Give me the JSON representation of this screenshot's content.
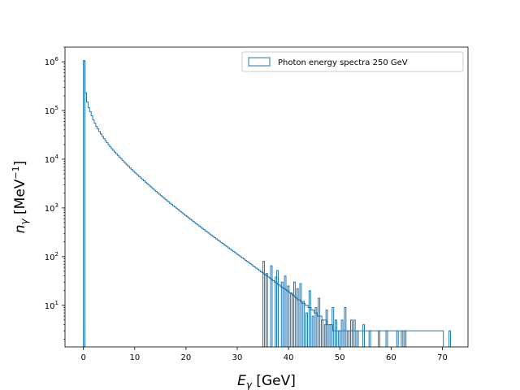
{
  "chart_data": {
    "type": "histogram",
    "title": "",
    "xlabel": "E_γ [GeV]",
    "xlabel_parts": {
      "symbol": "E",
      "sub": "γ",
      "unit": " [GeV]"
    },
    "ylabel": "n_γ [MeV^−1]",
    "ylabel_parts": {
      "symbol": "n",
      "sub": "γ",
      "open": " [MeV",
      "sup": "−1",
      "close": "]"
    },
    "xlim": [
      -3.6,
      75
    ],
    "ylim": [
      1.4,
      2000000
    ],
    "yscale": "log",
    "xticks": [
      0,
      10,
      20,
      30,
      40,
      50,
      60,
      70
    ],
    "xtick_labels": [
      "0",
      "10",
      "20",
      "30",
      "40",
      "50",
      "60",
      "70"
    ],
    "yticks": [
      10,
      100,
      1000,
      10000,
      100000,
      1000000
    ],
    "ytick_labels": [
      {
        "base": "10",
        "exp": "1"
      },
      {
        "base": "10",
        "exp": "2"
      },
      {
        "base": "10",
        "exp": "3"
      },
      {
        "base": "10",
        "exp": "4"
      },
      {
        "base": "10",
        "exp": "5"
      },
      {
        "base": "10",
        "exp": "6"
      }
    ],
    "grid": false,
    "legend_position": "top-right",
    "series": [
      {
        "name": "Photon energy spectra 250 GeV",
        "color": "#1f77b4",
        "bin_width": 0.3,
        "bin_start": 0,
        "counts": [
          1050000,
          230000,
          150000,
          115000,
          95000,
          78000,
          64000,
          55000,
          47000,
          42000,
          37000,
          33000,
          29500,
          26500,
          24000,
          21800,
          19800,
          18000,
          16500,
          15200,
          14000,
          13000,
          12000,
          11100,
          10300,
          9500,
          8800,
          8200,
          7600,
          7100,
          6600,
          6150,
          5750,
          5350,
          5000,
          4700,
          4400,
          4120,
          3850,
          3600,
          3380,
          3170,
          2970,
          2780,
          2610,
          2450,
          2300,
          2160,
          2030,
          1910,
          1790,
          1690,
          1590,
          1500,
          1410,
          1330,
          1250,
          1180,
          1110,
          1050,
          990,
          935,
          880,
          830,
          785,
          740,
          700,
          660,
          625,
          590,
          560,
          530,
          500,
          472,
          447,
          423,
          400,
          378,
          358,
          339,
          321,
          304,
          288,
          273,
          259,
          245,
          232,
          220,
          208,
          197,
          187,
          177,
          168,
          159,
          151,
          143,
          136,
          129,
          122,
          116,
          110,
          104,
          99,
          94,
          89,
          84,
          80,
          76,
          72,
          68,
          64,
          61,
          58,
          55,
          52,
          49,
          47,
          44,
          42,
          40,
          38,
          36,
          34,
          32,
          30,
          29,
          27,
          26,
          24,
          23,
          22,
          21,
          20,
          19,
          18,
          17,
          16,
          15,
          14,
          13,
          13,
          12,
          11,
          11,
          10,
          10,
          9,
          9,
          8,
          8,
          7,
          7,
          6,
          6,
          6,
          5,
          5,
          5,
          4,
          4,
          4,
          4,
          3,
          3,
          3,
          3,
          3,
          3,
          3,
          3,
          3,
          3,
          3,
          3,
          3,
          3,
          3,
          3,
          3,
          3,
          3,
          3,
          3,
          3,
          3,
          3,
          3,
          3,
          3,
          3,
          3,
          3,
          3,
          3,
          3,
          3,
          3,
          3,
          3,
          3,
          3,
          3,
          3,
          3,
          3,
          3,
          3,
          3,
          3,
          3,
          3,
          3,
          3,
          3,
          3,
          3,
          3,
          3,
          3,
          3,
          3,
          3,
          3,
          3,
          3,
          3,
          3,
          3,
          3,
          3,
          3,
          3,
          3,
          3
        ]
      }
    ],
    "tail_bins": [
      {
        "x0": 0.0,
        "x1": 0.3,
        "count": 1050000
      },
      {
        "x0": 35.0,
        "x1": 35.3,
        "count": 80
      },
      {
        "x0": 35.6,
        "x1": 35.9,
        "count": 45
      },
      {
        "x0": 36.5,
        "x1": 36.8,
        "count": 65
      },
      {
        "x0": 37.4,
        "x1": 37.7,
        "count": 38
      },
      {
        "x0": 37.7,
        "x1": 38.0,
        "count": 52
      },
      {
        "x0": 38.6,
        "x1": 38.9,
        "count": 30
      },
      {
        "x0": 39.2,
        "x1": 39.5,
        "count": 40
      },
      {
        "x0": 39.8,
        "x1": 40.1,
        "count": 25
      },
      {
        "x0": 40.4,
        "x1": 40.7,
        "count": 18
      },
      {
        "x0": 41.0,
        "x1": 41.3,
        "count": 30
      },
      {
        "x0": 41.6,
        "x1": 41.9,
        "count": 22
      },
      {
        "x0": 42.2,
        "x1": 42.5,
        "count": 28
      },
      {
        "x0": 42.8,
        "x1": 43.1,
        "count": 12
      },
      {
        "x0": 43.4,
        "x1": 43.7,
        "count": 7
      },
      {
        "x0": 44.0,
        "x1": 44.3,
        "count": 20
      },
      {
        "x0": 44.6,
        "x1": 44.9,
        "count": 6
      },
      {
        "x0": 45.2,
        "x1": 45.5,
        "count": 9
      },
      {
        "x0": 45.8,
        "x1": 46.1,
        "count": 14
      },
      {
        "x0": 46.4,
        "x1": 46.7,
        "count": 5
      },
      {
        "x0": 47.0,
        "x1": 47.3,
        "count": 4
      },
      {
        "x0": 47.3,
        "x1": 47.6,
        "count": 8
      },
      {
        "x0": 47.9,
        "x1": 48.2,
        "count": 4
      },
      {
        "x0": 48.5,
        "x1": 48.8,
        "count": 9
      },
      {
        "x0": 49.1,
        "x1": 49.4,
        "count": 5
      },
      {
        "x0": 49.7,
        "x1": 50.0,
        "count": 3
      },
      {
        "x0": 50.3,
        "x1": 50.6,
        "count": 5
      },
      {
        "x0": 50.9,
        "x1": 51.2,
        "count": 9
      },
      {
        "x0": 51.5,
        "x1": 51.8,
        "count": 3
      },
      {
        "x0": 52.1,
        "x1": 52.4,
        "count": 5
      },
      {
        "x0": 52.7,
        "x1": 53.0,
        "count": 5
      },
      {
        "x0": 53.3,
        "x1": 53.6,
        "count": 3
      },
      {
        "x0": 54.5,
        "x1": 54.8,
        "count": 4
      },
      {
        "x0": 55.7,
        "x1": 56.0,
        "count": 3
      },
      {
        "x0": 57.5,
        "x1": 57.8,
        "count": 3
      },
      {
        "x0": 59.0,
        "x1": 59.3,
        "count": 3
      },
      {
        "x0": 61.1,
        "x1": 61.4,
        "count": 3
      },
      {
        "x0": 62.0,
        "x1": 62.3,
        "count": 3
      },
      {
        "x0": 62.6,
        "x1": 62.9,
        "count": 3
      },
      {
        "x0": 71.3,
        "x1": 71.6,
        "count": 3
      }
    ]
  }
}
